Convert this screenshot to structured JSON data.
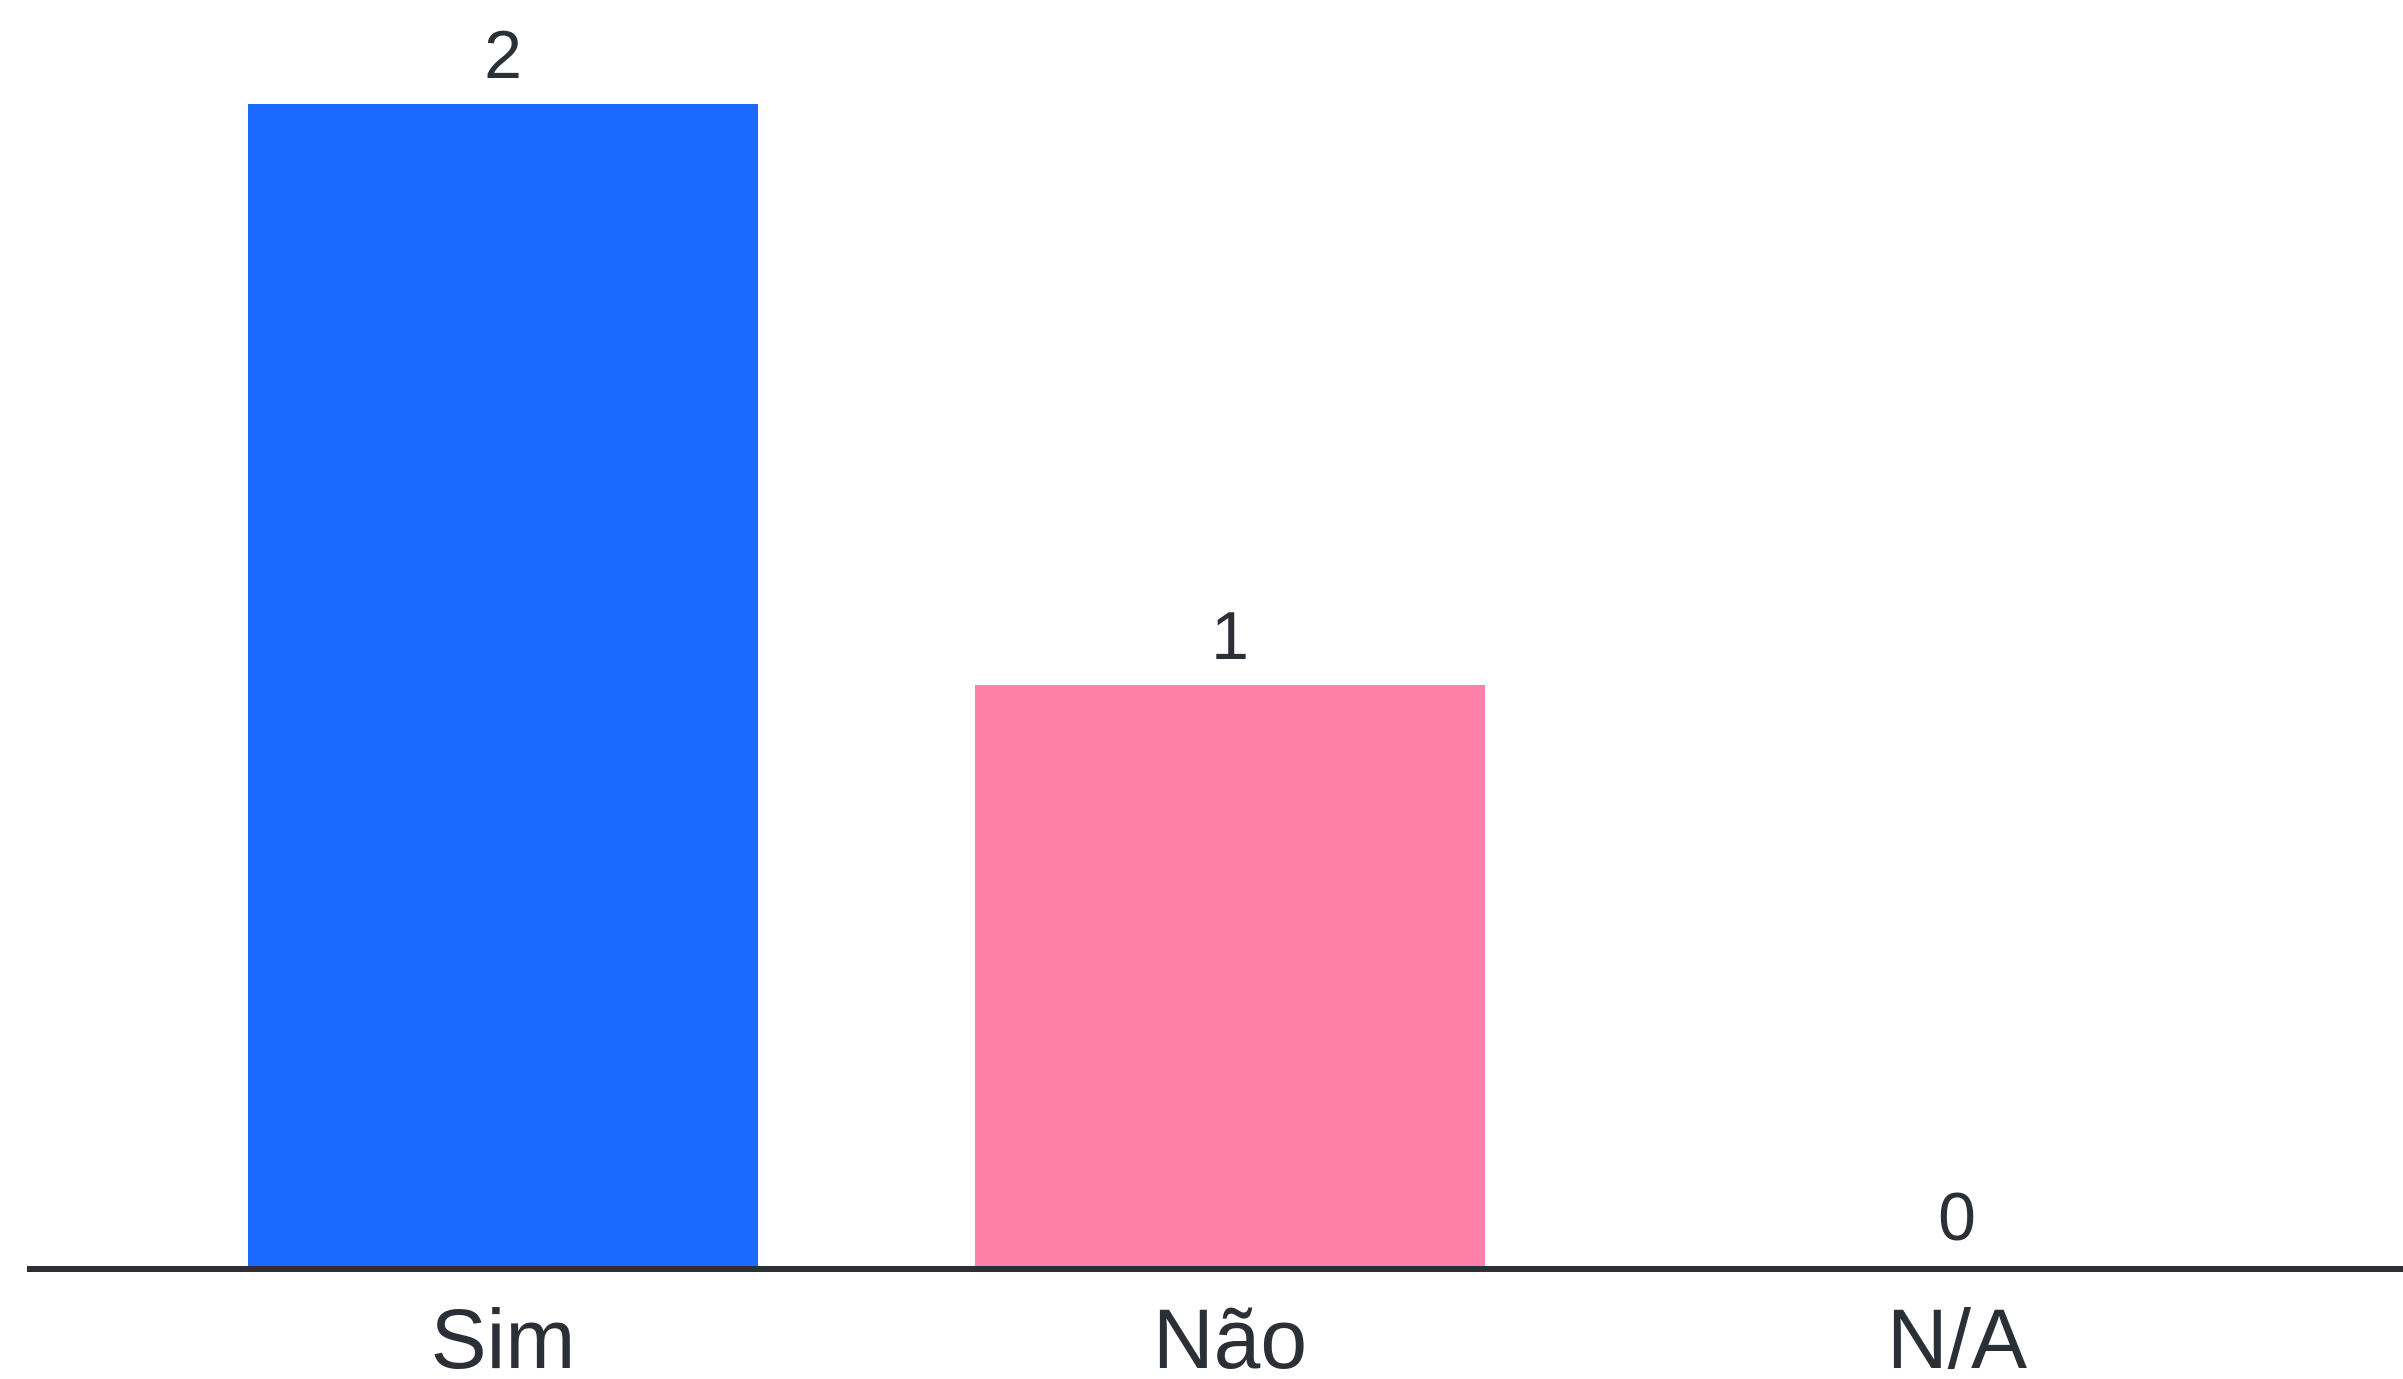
{
  "chart_data": {
    "type": "bar",
    "categories": [
      "Sim",
      "Não",
      "N/A"
    ],
    "values": [
      2,
      1,
      0
    ],
    "value_labels": [
      "2",
      "1",
      "0"
    ],
    "colors": [
      "#1b6aff",
      "#ff80a8",
      "#cccccc"
    ],
    "axis_color": "#2b2f36",
    "ylim": [
      0,
      2
    ],
    "grid": false,
    "legend": "none",
    "title": "",
    "xlabel": "",
    "ylabel": ""
  }
}
